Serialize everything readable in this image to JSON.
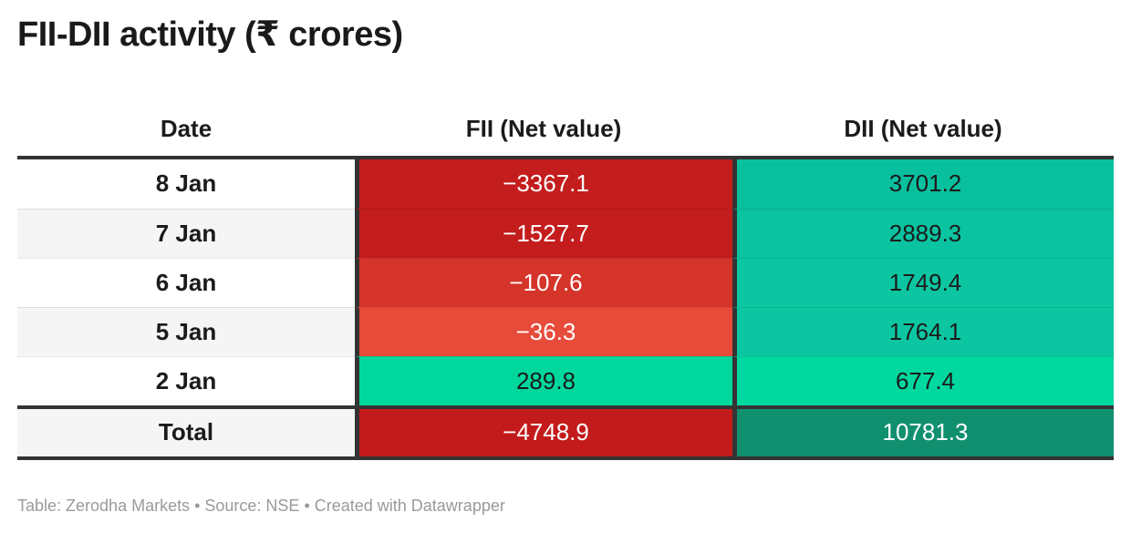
{
  "title": "FII-DII activity (₹ crores)",
  "columns": {
    "date": "Date",
    "fii": "FII (Net value)",
    "dii": "DII (Net value)"
  },
  "rows": [
    {
      "date": "8 Jan",
      "stripe": "#ffffff",
      "fii": {
        "text": "−3367.1",
        "bg": "#c41d1d",
        "fg": "#ffffff"
      },
      "dii": {
        "text": "3701.2",
        "bg": "#09c09e",
        "fg": "#1b1b1b"
      }
    },
    {
      "date": "7 Jan",
      "stripe": "#f5f5f5",
      "fii": {
        "text": "−1527.7",
        "bg": "#c41d1d",
        "fg": "#ffffff"
      },
      "dii": {
        "text": "2889.3",
        "bg": "#0ac3a0",
        "fg": "#1b1b1b"
      }
    },
    {
      "date": "6 Jan",
      "stripe": "#ffffff",
      "fii": {
        "text": "−107.6",
        "bg": "#d5342a",
        "fg": "#ffffff"
      },
      "dii": {
        "text": "1749.4",
        "bg": "#0cc6a2",
        "fg": "#1b1b1b"
      }
    },
    {
      "date": "5 Jan",
      "stripe": "#f5f5f5",
      "fii": {
        "text": "−36.3",
        "bg": "#e74b3a",
        "fg": "#ffffff"
      },
      "dii": {
        "text": "1764.1",
        "bg": "#0cc6a2",
        "fg": "#1b1b1b"
      }
    },
    {
      "date": "2 Jan",
      "stripe": "#ffffff",
      "fii": {
        "text": "289.8",
        "bg": "#00d79d",
        "fg": "#1b1b1b"
      },
      "dii": {
        "text": "677.4",
        "bg": "#00d8a0",
        "fg": "#1b1b1b"
      }
    }
  ],
  "total": {
    "label": "Total",
    "stripe": "#f5f5f5",
    "fii": {
      "text": "−4748.9",
      "bg": "#c31b1b",
      "fg": "#ffffff"
    },
    "dii": {
      "text": "10781.3",
      "bg": "#10906f",
      "fg": "#ffffff"
    }
  },
  "footer": "Table: Zerodha Markets • Source: NSE • Created with Datawrapper",
  "colors": {
    "border_dark": "#333333",
    "negative_strong": "#c41d1d",
    "negative_weak": "#e74b3a",
    "positive_bright": "#00d79d",
    "positive_teal": "#0ac3a0",
    "total_negative": "#c31b1b",
    "total_positive": "#10906f",
    "row_stripe": "#f5f5f5",
    "footer_text": "#9a9a9a"
  },
  "chart_data": {
    "type": "table",
    "title": "FII-DII activity (₹ crores)",
    "columns": [
      "Date",
      "FII (Net value)",
      "DII (Net value)"
    ],
    "rows": [
      [
        "8 Jan",
        -3367.1,
        3701.2
      ],
      [
        "7 Jan",
        -1527.7,
        2889.3
      ],
      [
        "6 Jan",
        -107.6,
        1749.4
      ],
      [
        "5 Jan",
        -36.3,
        1764.1
      ],
      [
        "2 Jan",
        289.8,
        677.4
      ]
    ],
    "total_row": [
      "Total",
      -4748.9,
      10781.3
    ],
    "cell_shading": "heatmap: red = negative net value, green/teal = positive net value",
    "footer": "Table: Zerodha Markets • Source: NSE • Created with Datawrapper"
  }
}
